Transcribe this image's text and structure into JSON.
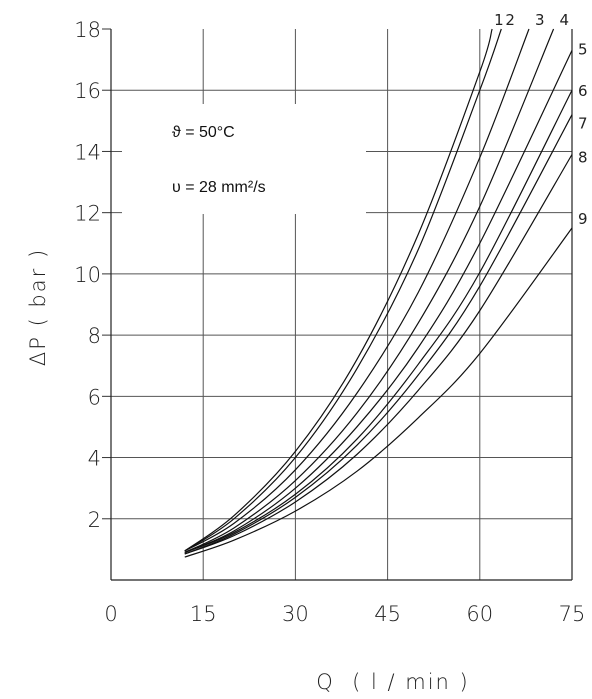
{
  "chart_data": {
    "type": "line",
    "xlabel": "Q  ( l / min )",
    "ylabel": "ΔP ( bar )",
    "xlim": [
      0,
      75
    ],
    "ylim": [
      0,
      18
    ],
    "x_ticks": [
      "0",
      "15",
      "30",
      "45",
      "60",
      "75"
    ],
    "y_ticks": [
      "2",
      "4",
      "6",
      "8",
      "10",
      "12",
      "14",
      "16",
      "18"
    ],
    "grid": true,
    "annotations": [
      "ϑ = 50°C",
      "υ = 28 mm²/s"
    ],
    "series": [
      {
        "name": "1",
        "x": [
          12,
          20,
          30,
          40,
          50,
          60,
          62
        ],
        "y": [
          0.95,
          2.1,
          4.2,
          7.2,
          11.3,
          16.6,
          18
        ]
      },
      {
        "name": "2",
        "x": [
          12,
          20,
          30,
          40,
          50,
          60,
          63.5
        ],
        "y": [
          0.95,
          2.0,
          4.0,
          6.9,
          10.8,
          16.0,
          18
        ]
      },
      {
        "name": "3",
        "x": [
          12,
          20,
          30,
          40,
          50,
          60,
          68
        ],
        "y": [
          0.95,
          1.85,
          3.6,
          6.1,
          9.4,
          13.8,
          18
        ]
      },
      {
        "name": "4",
        "x": [
          12,
          20,
          30,
          40,
          50,
          60,
          72
        ],
        "y": [
          0.9,
          1.7,
          3.25,
          5.45,
          8.4,
          12.2,
          18
        ]
      },
      {
        "name": "5",
        "x": [
          12,
          20,
          30,
          40,
          50,
          60,
          75
        ],
        "y": [
          0.9,
          1.6,
          3.0,
          5.0,
          7.6,
          11.0,
          17.3
        ]
      },
      {
        "name": "6",
        "x": [
          12,
          20,
          30,
          40,
          50,
          60,
          75
        ],
        "y": [
          0.9,
          1.55,
          2.8,
          4.6,
          7.05,
          10.05,
          16.0
        ]
      },
      {
        "name": "7",
        "x": [
          12,
          20,
          30,
          40,
          50,
          60,
          75
        ],
        "y": [
          0.85,
          1.5,
          2.7,
          4.4,
          6.7,
          9.6,
          15.2
        ]
      },
      {
        "name": "8",
        "x": [
          12,
          20,
          30,
          40,
          50,
          60,
          75
        ],
        "y": [
          0.85,
          1.45,
          2.55,
          4.1,
          6.2,
          8.8,
          13.9
        ]
      },
      {
        "name": "9",
        "x": [
          12,
          20,
          30,
          40,
          50,
          60,
          75
        ],
        "y": [
          0.75,
          1.3,
          2.25,
          3.55,
          5.3,
          7.4,
          11.5
        ]
      }
    ]
  }
}
